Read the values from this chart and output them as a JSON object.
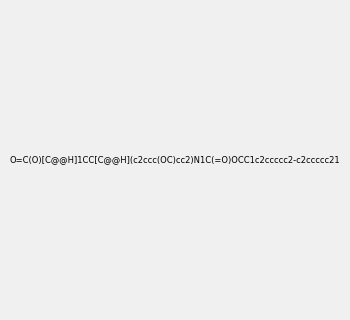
{
  "smiles": "O=C(O)[C@@H]1CC[C@@H](c2ccc(OC)cc2)N1C(=O)OCC1c2ccccc2-c2ccccc21",
  "image_size": 300,
  "background_color": "#f0f0f0",
  "title": "",
  "bond_color": "#1a1a1a",
  "atom_colors": {
    "N": "#0000ff",
    "O": "#ff0000",
    "H_label": "#4a9090"
  }
}
